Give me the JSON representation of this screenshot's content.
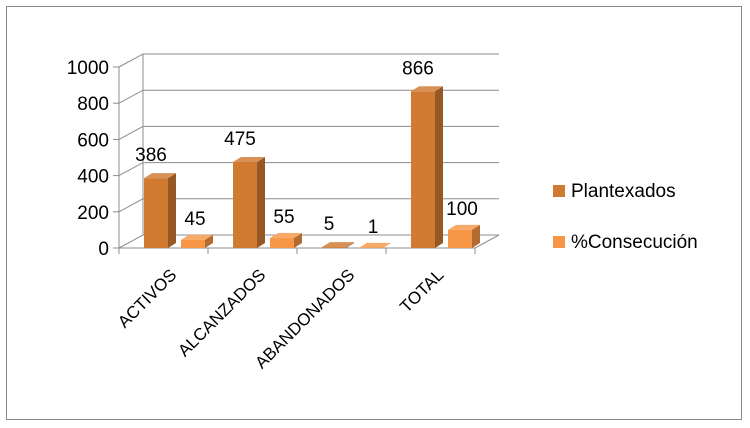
{
  "chart_data": {
    "type": "bar",
    "style": "3d-clustered-column",
    "categories": [
      "ACTIVOS",
      "ALCANZADOS",
      "ABANDONADOS",
      "TOTAL"
    ],
    "series": [
      {
        "name": "Plantexados",
        "values": [
          386,
          475,
          5,
          866
        ],
        "labels": [
          "386",
          "475",
          "5",
          "866"
        ],
        "color": "#d07a32"
      },
      {
        "name": "%Consecución",
        "values": [
          45,
          55,
          1,
          100
        ],
        "labels": [
          "45",
          "55",
          "1",
          "100"
        ],
        "color": "#f79646"
      }
    ],
    "ylim": [
      0,
      1000
    ],
    "yticks": [
      "0",
      "200",
      "400",
      "600",
      "800",
      "1000"
    ],
    "ytick_values": [
      0,
      200,
      400,
      600,
      800,
      1000
    ],
    "grid": true,
    "legend_position": "right"
  }
}
